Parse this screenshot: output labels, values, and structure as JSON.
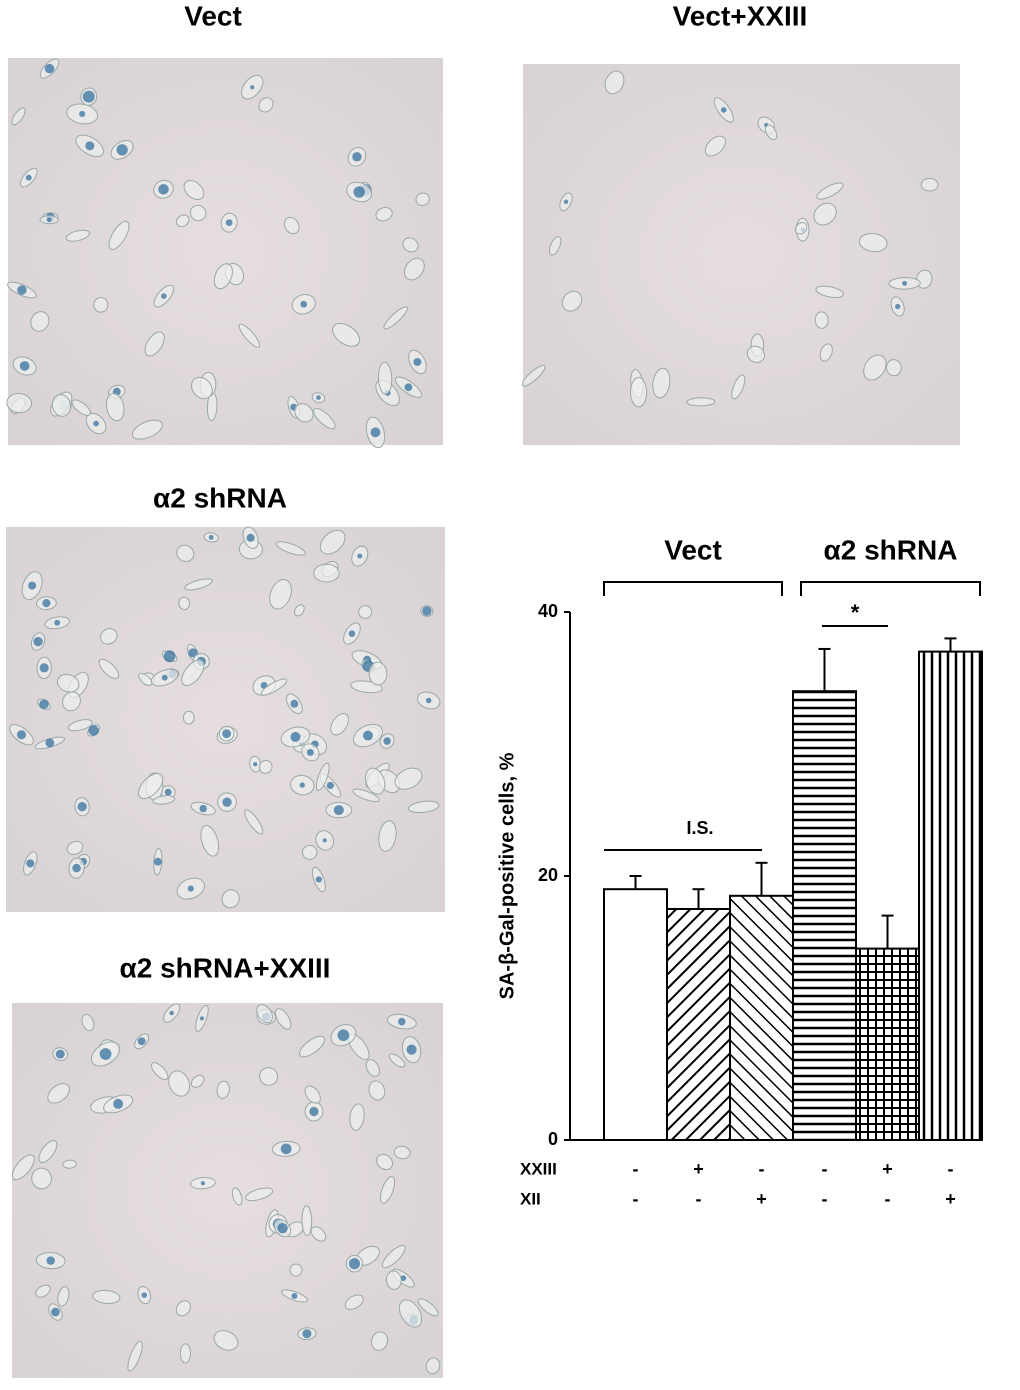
{
  "panels": [
    {
      "title": "Vect"
    },
    {
      "title": "Vect+XXIII"
    },
    {
      "title": "α2 shRNA"
    },
    {
      "title": "α2 shRNA+XXIII"
    }
  ],
  "chart_data": {
    "type": "bar",
    "ylabel": "SA-β-Gal-positive cells, %",
    "groups": [
      "Vect",
      "α2 shRNA"
    ],
    "values": [
      19,
      17.5,
      18.5,
      34,
      14.5,
      37
    ],
    "errors": [
      1,
      1.5,
      2.5,
      3.2,
      2.5,
      1
    ],
    "patterns": [
      "none",
      "back-diagonal",
      "diagonal",
      "horizontal",
      "grid",
      "vertical"
    ],
    "color": "#000000",
    "ylim": [
      0,
      40
    ],
    "yticks": [
      0,
      20,
      40
    ],
    "treatments": [
      {
        "name": "XXIII",
        "signs": [
          "-",
          "+",
          "-",
          "-",
          "+",
          "-"
        ]
      },
      {
        "name": "XII",
        "signs": [
          "-",
          "-",
          "+",
          "-",
          "-",
          "+"
        ]
      }
    ],
    "annotations": [
      "I.S.",
      "*"
    ]
  }
}
